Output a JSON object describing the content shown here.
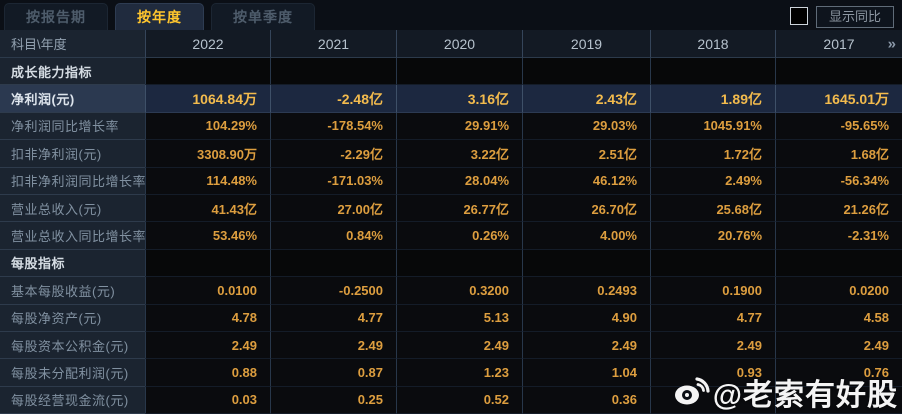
{
  "tabs": [
    {
      "label": "按报告期",
      "active": false
    },
    {
      "label": "按年度",
      "active": true
    },
    {
      "label": "按单季度",
      "active": false
    }
  ],
  "controls": {
    "show_yoy_label": "显示同比",
    "checkbox_checked": false
  },
  "table": {
    "corner_label": "科目\\年度",
    "years": [
      "2022",
      "2021",
      "2020",
      "2019",
      "2018",
      "2017"
    ],
    "more_icon": "»",
    "rows": [
      {
        "type": "section",
        "label": "成长能力指标",
        "values": [
          "",
          "",
          "",
          "",
          "",
          ""
        ]
      },
      {
        "type": "highlight",
        "label": "净利润(元)",
        "values": [
          "1064.84万",
          "-2.48亿",
          "3.16亿",
          "2.43亿",
          "1.89亿",
          "1645.01万"
        ]
      },
      {
        "type": "data",
        "label": "净利润同比增长率",
        "values": [
          "104.29%",
          "-178.54%",
          "29.91%",
          "29.03%",
          "1045.91%",
          "-95.65%"
        ]
      },
      {
        "type": "data",
        "label": "扣非净利润(元)",
        "values": [
          "3308.90万",
          "-2.29亿",
          "3.22亿",
          "2.51亿",
          "1.72亿",
          "1.68亿"
        ]
      },
      {
        "type": "data",
        "label": "扣非净利润同比增长率",
        "values": [
          "114.48%",
          "-171.03%",
          "28.04%",
          "46.12%",
          "2.49%",
          "-56.34%"
        ]
      },
      {
        "type": "data",
        "label": "营业总收入(元)",
        "values": [
          "41.43亿",
          "27.00亿",
          "26.77亿",
          "26.70亿",
          "25.68亿",
          "21.26亿"
        ]
      },
      {
        "type": "data",
        "label": "营业总收入同比增长率",
        "values": [
          "53.46%",
          "0.84%",
          "0.26%",
          "4.00%",
          "20.76%",
          "-2.31%"
        ]
      },
      {
        "type": "section",
        "label": "每股指标",
        "values": [
          "",
          "",
          "",
          "",
          "",
          ""
        ]
      },
      {
        "type": "data",
        "label": "基本每股收益(元)",
        "values": [
          "0.0100",
          "-0.2500",
          "0.3200",
          "0.2493",
          "0.1900",
          "0.0200"
        ]
      },
      {
        "type": "data",
        "label": "每股净资产(元)",
        "values": [
          "4.78",
          "4.77",
          "5.13",
          "4.90",
          "4.77",
          "4.58"
        ]
      },
      {
        "type": "data",
        "label": "每股资本公积金(元)",
        "values": [
          "2.49",
          "2.49",
          "2.49",
          "2.49",
          "2.49",
          "2.49"
        ]
      },
      {
        "type": "data",
        "label": "每股未分配利润(元)",
        "values": [
          "0.88",
          "0.87",
          "1.23",
          "1.04",
          "0.93",
          "0.76"
        ]
      },
      {
        "type": "data",
        "label": "每股经营现金流(元)",
        "values": [
          "0.03",
          "0.25",
          "0.52",
          "0.36",
          "",
          ""
        ]
      }
    ]
  },
  "watermark": {
    "handle": "@老索有好股",
    "icon": "weibo-icon"
  },
  "colors": {
    "accent_gold": "#ffc62e",
    "value_orange": "#dd9e3f",
    "highlight_value": "#f3bb4d",
    "highlight_row_bg": "#1c2840",
    "label_column_bg": "#1b2430",
    "page_bg": "#0a0e14"
  }
}
